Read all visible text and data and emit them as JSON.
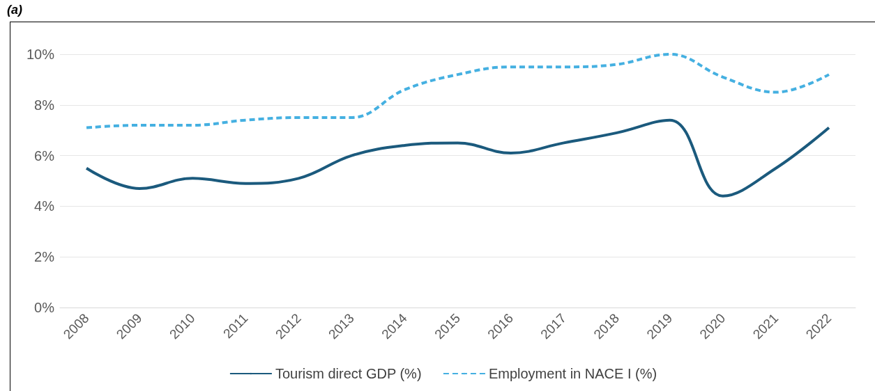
{
  "chart_data": {
    "type": "line",
    "title": "(a)",
    "categories": [
      "2008",
      "2009",
      "2010",
      "2011",
      "2012",
      "2013",
      "2014",
      "2015",
      "2016",
      "2017",
      "2018",
      "2019",
      "2020",
      "2021",
      "2022"
    ],
    "series": [
      {
        "name": "Tourism direct GDP (%)",
        "color": "#1b5a7d",
        "line_style": "solid",
        "values": [
          5.5,
          4.7,
          5.1,
          4.9,
          5.1,
          6.0,
          6.4,
          6.5,
          6.1,
          6.5,
          6.9,
          7.4,
          4.4,
          5.5,
          7.1
        ]
      },
      {
        "name": "Employment in NACE I (%)",
        "color": "#45b0e1",
        "line_style": "dashed",
        "values": [
          7.1,
          7.2,
          7.2,
          7.4,
          7.5,
          7.5,
          8.6,
          9.2,
          9.5,
          9.5,
          9.6,
          10.0,
          9.1,
          8.5,
          9.2
        ]
      }
    ],
    "ylim": [
      0,
      10
    ],
    "yticks": [
      {
        "value": 0,
        "label": "0%"
      },
      {
        "value": 2,
        "label": "2%"
      },
      {
        "value": 4,
        "label": "4%"
      },
      {
        "value": 6,
        "label": "6%"
      },
      {
        "value": 8,
        "label": "8%"
      },
      {
        "value": 10,
        "label": "10%"
      }
    ],
    "grid": "y",
    "legend": "bottom",
    "marker": "none"
  }
}
